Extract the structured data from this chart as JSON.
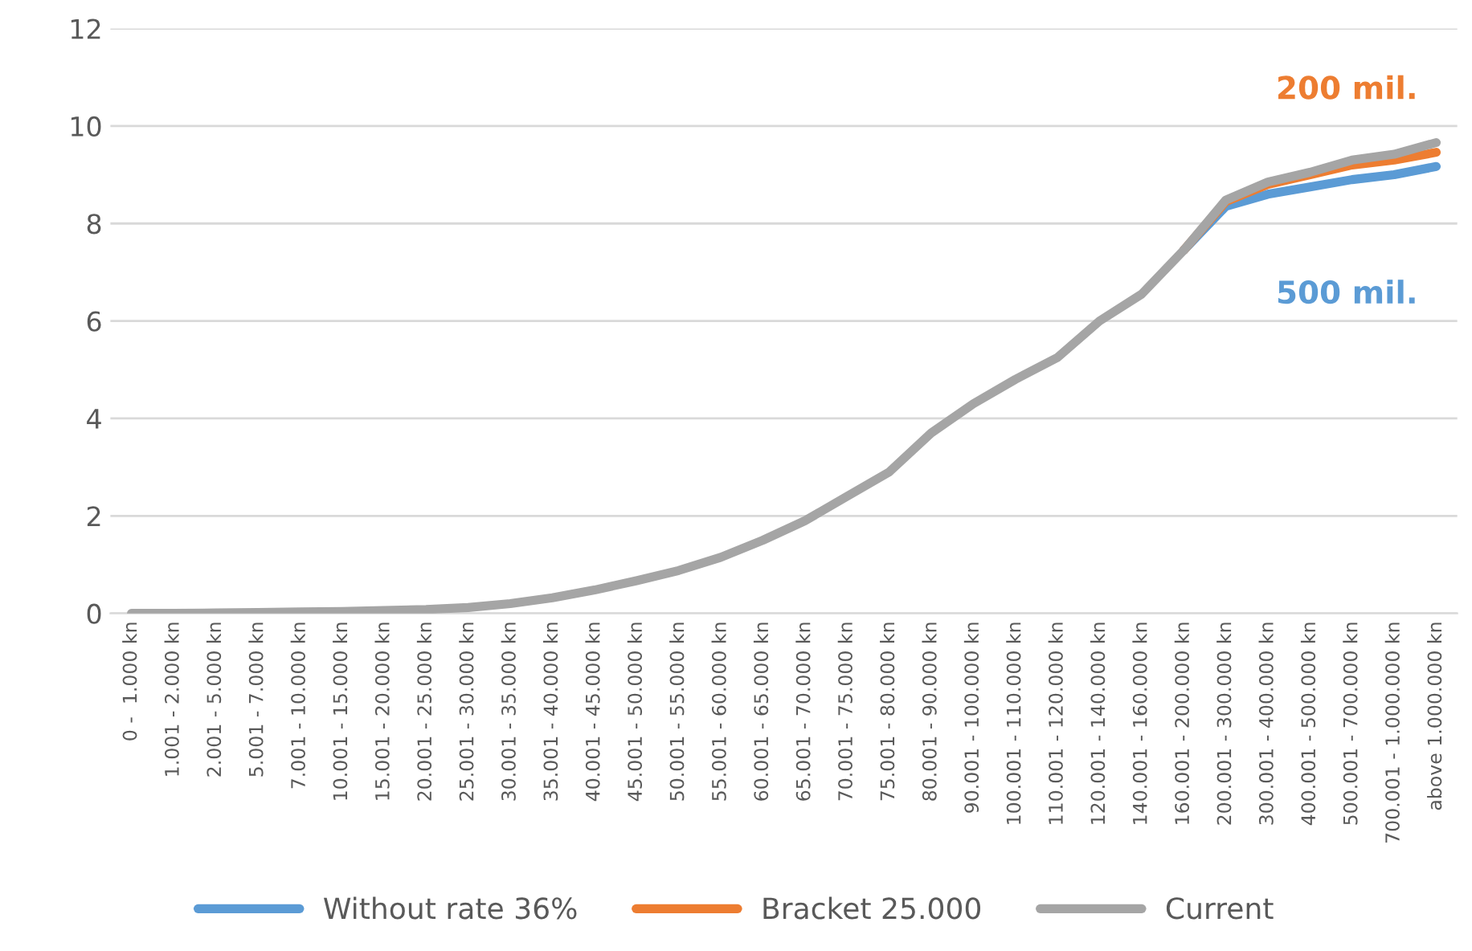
{
  "chart_data": {
    "type": "line",
    "categories": [
      "0 -  1.000 kn",
      "1.001 - 2.000 kn",
      "2.001 - 5.000 kn",
      "5.001 - 7.000 kn",
      "7.001 - 10.000 kn",
      "10.001 - 15.000 kn",
      "15.001 - 20.000 kn",
      "20.001 - 25.000 kn",
      "25.001 - 30.000 kn",
      "30.001 - 35.000 kn",
      "35.001 - 40.000 kn",
      "40.001 - 45.000 kn",
      "45.001 - 50.000 kn",
      "50.001 - 55.000 kn",
      "55.001 - 60.000 kn",
      "60.001 - 65.000 kn",
      "65.001 - 70.000 kn",
      "70.001 - 75.000 kn",
      "75.001 - 80.000 kn",
      "80.001 - 90.000 kn",
      "90.001 - 100.000 kn",
      "100.001 - 110.000 kn",
      "110.001 - 120.000 kn",
      "120.001 - 140.000 kn",
      "140.001 - 160.000 kn",
      "160.001 - 200.000 kn",
      "200.001 - 300.000 kn",
      "300.001 - 400.000 kn",
      "400.001 - 500.000 kn",
      "500.001 - 700.000 kn",
      "700.001 - 1.000.000 kn",
      "above 1.000.000 kn"
    ],
    "series": [
      {
        "name": "Without rate 36%",
        "color": "#5b9bd5",
        "values": [
          null,
          null,
          null,
          null,
          null,
          null,
          null,
          null,
          null,
          null,
          null,
          null,
          null,
          null,
          null,
          null,
          null,
          null,
          null,
          null,
          null,
          null,
          null,
          null,
          null,
          7.45,
          8.35,
          8.6,
          8.75,
          8.9,
          9.0,
          9.17
        ]
      },
      {
        "name": "Bracket 25.000",
        "color": "#ed7d31",
        "values": [
          null,
          null,
          null,
          null,
          null,
          null,
          null,
          null,
          null,
          null,
          null,
          null,
          null,
          null,
          null,
          null,
          null,
          null,
          null,
          null,
          null,
          null,
          null,
          null,
          null,
          7.45,
          8.45,
          8.8,
          9.0,
          9.2,
          9.3,
          9.46
        ]
      },
      {
        "name": "Current",
        "color": "#a5a5a5",
        "values": [
          0,
          0,
          0.01,
          0.02,
          0.03,
          0.04,
          0.06,
          0.08,
          0.12,
          0.2,
          0.32,
          0.48,
          0.67,
          0.88,
          1.15,
          1.5,
          1.9,
          2.4,
          2.9,
          3.7,
          4.3,
          4.8,
          5.25,
          6.0,
          6.55,
          7.45,
          8.48,
          8.85,
          9.05,
          9.3,
          9.42,
          9.66
        ]
      }
    ],
    "ylim": [
      0,
      12
    ],
    "yticks": [
      0,
      2,
      4,
      6,
      8,
      10,
      12
    ],
    "grid": "y",
    "legend": "bottom",
    "marker": "none",
    "line_style": "solid",
    "annotations": [
      "200 mil.",
      "500 mil."
    ]
  }
}
